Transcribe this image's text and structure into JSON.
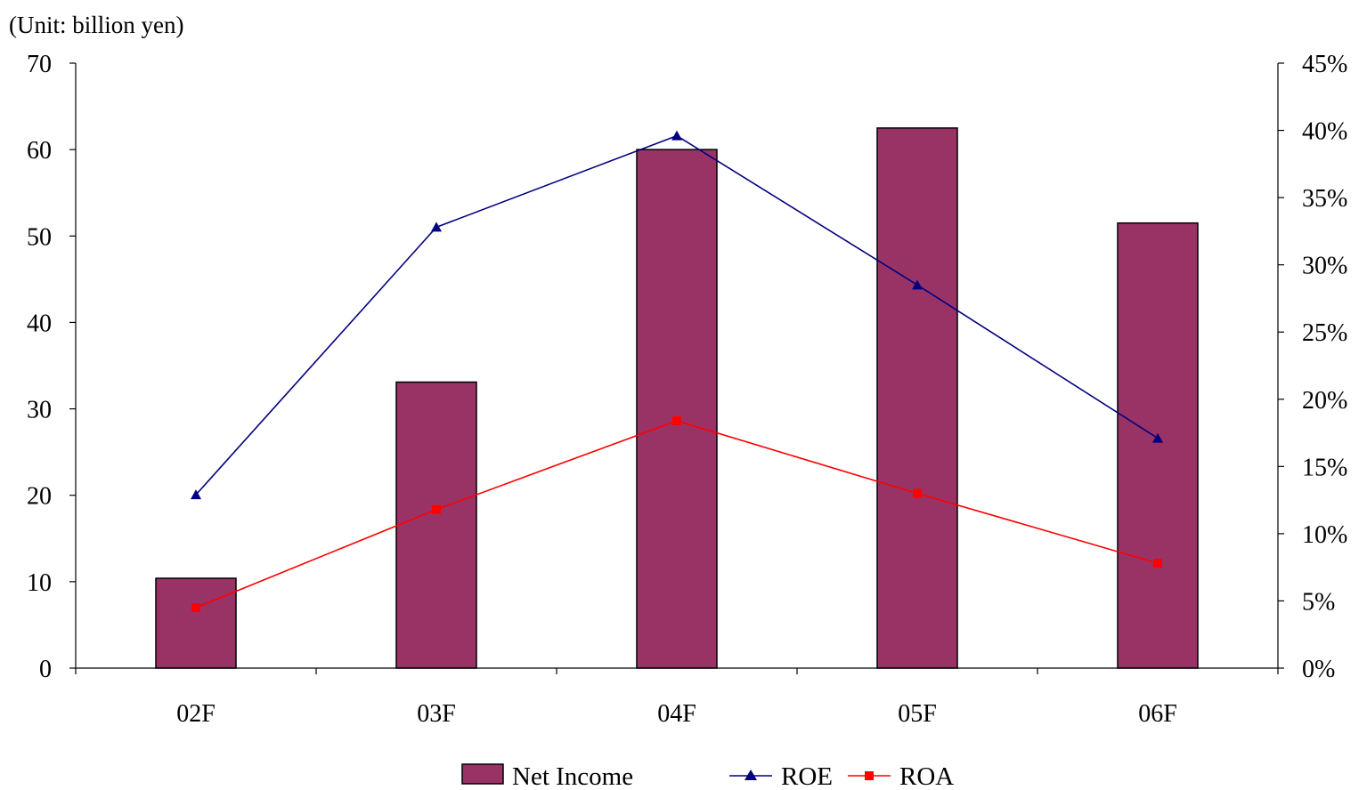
{
  "chart_data": {
    "type": "bar",
    "unit_label": "(Unit: billion yen)",
    "categories": [
      "02F",
      "03F",
      "04F",
      "05F",
      "06F"
    ],
    "series": [
      {
        "name": "Net Income",
        "kind": "bar",
        "axis": "left",
        "color": "#993366",
        "values": [
          10.4,
          33.1,
          60.0,
          62.5,
          51.5
        ]
      },
      {
        "name": "ROE",
        "kind": "line",
        "marker": "triangle",
        "axis": "right",
        "color": "#000080",
        "values": [
          0.129,
          0.328,
          0.396,
          0.285,
          0.171
        ]
      },
      {
        "name": "ROA",
        "kind": "line",
        "marker": "square",
        "axis": "right",
        "color": "#ff0000",
        "values": [
          0.045,
          0.118,
          0.184,
          0.13,
          0.078
        ]
      }
    ],
    "y_left": {
      "ylim": [
        0,
        70
      ],
      "ticks": [
        "0",
        "10",
        "20",
        "30",
        "40",
        "50",
        "60",
        "70"
      ]
    },
    "y_right": {
      "ylim": [
        0,
        0.45
      ],
      "ticks": [
        "0%",
        "5%",
        "10%",
        "15%",
        "20%",
        "25%",
        "30%",
        "35%",
        "40%",
        "45%"
      ]
    },
    "grid": false,
    "legend_position": "bottom-center"
  }
}
